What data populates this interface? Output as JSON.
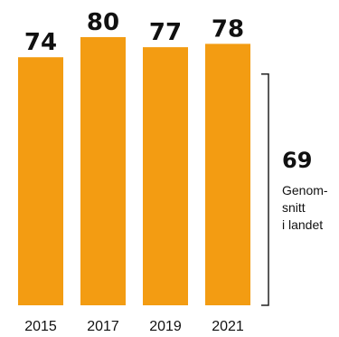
{
  "chart_data": {
    "type": "bar",
    "categories": [
      "2015",
      "2017",
      "2019",
      "2021"
    ],
    "values": [
      74,
      80,
      77,
      78
    ],
    "data_labels": [
      "74",
      "80",
      "77",
      "78"
    ],
    "bar_color": "#F39C12",
    "title": "",
    "xlabel": "",
    "ylabel": "",
    "ylim": [
      0,
      80
    ],
    "grid": false,
    "legend": "none",
    "reference": {
      "value": 69,
      "value_label": "69",
      "label_lines": [
        "Genom-",
        "snitt",
        "i landet"
      ]
    }
  }
}
